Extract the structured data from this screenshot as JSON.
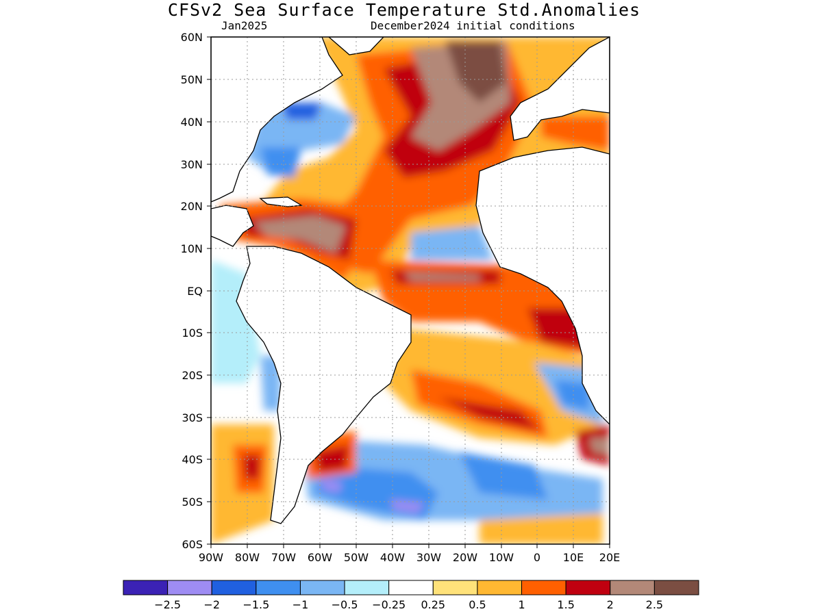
{
  "title": "CFSv2 Sea Surface Temperature Std.Anomalies",
  "subtitle_left": "Jan2025",
  "subtitle_right": "December2024 initial conditions",
  "lat_labels": [
    "60N",
    "50N",
    "40N",
    "30N",
    "20N",
    "10N",
    "EQ",
    "10S",
    "20S",
    "30S",
    "40S",
    "50S",
    "60S"
  ],
  "lon_labels": [
    "90W",
    "80W",
    "70W",
    "60W",
    "50W",
    "40W",
    "30W",
    "20W",
    "10W",
    "0",
    "10E",
    "20E"
  ],
  "colorbar": {
    "colors": [
      "#3b22b5",
      "#9e8cf3",
      "#2060e0",
      "#3f8ff0",
      "#7ab6f4",
      "#b4eefa",
      "#ffffff",
      "#ffe27a",
      "#ffb832",
      "#ff6000",
      "#c00010",
      "#b38878",
      "#7b4e42"
    ],
    "labels": [
      "−2.5",
      "−2",
      "−1.5",
      "−1",
      "−0.5",
      "−0.25",
      "0.25",
      "0.5",
      "1",
      "1.5",
      "2",
      "2.5"
    ]
  }
}
